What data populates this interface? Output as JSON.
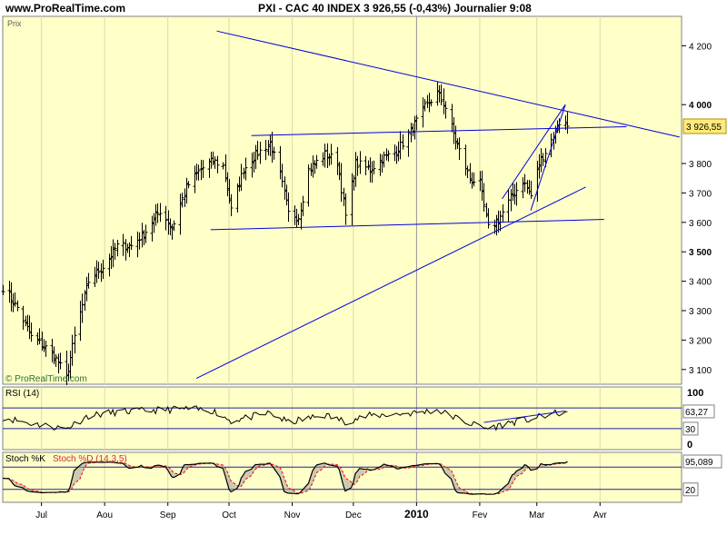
{
  "header": {
    "site": "www.ProRealTime.com",
    "title": "PXI - CAC 40 INDEX   3 926,55 (-0,43%)   Journalier  9:08"
  },
  "colors": {
    "panel_bg": "#ffffc8",
    "trendline": "#0000dd",
    "price_tag_bg": "#ffeb7a",
    "stoch_d": "#ff0000",
    "stoch_fill": "#a0a0a0"
  },
  "chart_data": [
    {
      "type": "candlestick",
      "panel": "price",
      "label": "Prix",
      "watermark": "© ProRealTime.com",
      "ylim": [
        3050,
        4300
      ],
      "yticks": [
        {
          "value": 3100,
          "label": "3 100",
          "bold": false
        },
        {
          "value": 3200,
          "label": "3 200",
          "bold": false
        },
        {
          "value": 3300,
          "label": "3 300",
          "bold": false
        },
        {
          "value": 3400,
          "label": "3 400",
          "bold": false
        },
        {
          "value": 3500,
          "label": "3 500",
          "bold": true
        },
        {
          "value": 3600,
          "label": "3 600",
          "bold": false
        },
        {
          "value": 3700,
          "label": "3 700",
          "bold": false
        },
        {
          "value": 3800,
          "label": "3 800",
          "bold": false
        },
        {
          "value": 4000,
          "label": "4 000",
          "bold": true
        },
        {
          "value": 4200,
          "label": "4 200",
          "bold": false
        }
      ],
      "last_price": {
        "value": 3926.55,
        "label": "3 926,55"
      },
      "xlim": [
        "2009-06-12",
        "2010-05-11"
      ],
      "xticks": [
        {
          "date": "2009-07-01",
          "label": "Jul"
        },
        {
          "date": "2009-08-01",
          "label": "Aou"
        },
        {
          "date": "2009-09-01",
          "label": "Sep"
        },
        {
          "date": "2009-10-01",
          "label": "Oct"
        },
        {
          "date": "2009-11-01",
          "label": "Nov"
        },
        {
          "date": "2009-12-01",
          "label": "Dec"
        },
        {
          "date": "2010-01-01",
          "label": "2010",
          "bold": true
        },
        {
          "date": "2010-02-01",
          "label": "Fev"
        },
        {
          "date": "2010-03-01",
          "label": "Mar"
        },
        {
          "date": "2010-04-01",
          "label": "Avr"
        }
      ],
      "series_start": "2009-06-12",
      "series_end": "2010-03-16",
      "close_anchors": [
        [
          "2009-06-12",
          3380
        ],
        [
          "2009-06-19",
          3310
        ],
        [
          "2009-06-26",
          3210
        ],
        [
          "2009-07-02",
          3180
        ],
        [
          "2009-07-07",
          3150
        ],
        [
          "2009-07-13",
          3070
        ],
        [
          "2009-07-17",
          3210
        ],
        [
          "2009-07-24",
          3400
        ],
        [
          "2009-07-31",
          3450
        ],
        [
          "2009-08-07",
          3520
        ],
        [
          "2009-08-14",
          3520
        ],
        [
          "2009-08-21",
          3570
        ],
        [
          "2009-08-28",
          3640
        ],
        [
          "2009-09-03",
          3580
        ],
        [
          "2009-09-10",
          3720
        ],
        [
          "2009-09-17",
          3780
        ],
        [
          "2009-09-23",
          3810
        ],
        [
          "2009-09-28",
          3790
        ],
        [
          "2009-10-02",
          3640
        ],
        [
          "2009-10-08",
          3780
        ],
        [
          "2009-10-14",
          3830
        ],
        [
          "2009-10-21",
          3870
        ],
        [
          "2009-10-26",
          3760
        ],
        [
          "2009-10-30",
          3630
        ],
        [
          "2009-11-04",
          3620
        ],
        [
          "2009-11-09",
          3780
        ],
        [
          "2009-11-17",
          3830
        ],
        [
          "2009-11-23",
          3810
        ],
        [
          "2009-11-27",
          3620
        ],
        [
          "2009-12-02",
          3800
        ],
        [
          "2009-12-09",
          3780
        ],
        [
          "2009-12-16",
          3820
        ],
        [
          "2009-12-22",
          3840
        ],
        [
          "2009-12-30",
          3920
        ],
        [
          "2010-01-05",
          3990
        ],
        [
          "2010-01-11",
          4040
        ],
        [
          "2010-01-15",
          3990
        ],
        [
          "2010-01-20",
          3880
        ],
        [
          "2010-01-27",
          3750
        ],
        [
          "2010-02-01",
          3730
        ],
        [
          "2010-02-05",
          3580
        ],
        [
          "2010-02-10",
          3610
        ],
        [
          "2010-02-16",
          3680
        ],
        [
          "2010-02-22",
          3740
        ],
        [
          "2010-02-26",
          3690
        ],
        [
          "2010-03-02",
          3800
        ],
        [
          "2010-03-08",
          3880
        ],
        [
          "2010-03-12",
          3940
        ],
        [
          "2010-03-16",
          3926.55
        ]
      ],
      "trendlines": [
        {
          "from": [
            "2009-09-25",
            4250
          ],
          "to": [
            "2010-05-10",
            3890
          ]
        },
        {
          "from": [
            "2009-10-12",
            3895
          ],
          "to": [
            "2010-04-14",
            3925
          ]
        },
        {
          "from": [
            "2009-09-22",
            3575
          ],
          "to": [
            "2010-04-03",
            3610
          ]
        },
        {
          "from": [
            "2009-09-15",
            3070
          ],
          "to": [
            "2010-03-25",
            3720
          ]
        },
        {
          "from": [
            "2010-02-12",
            3680
          ],
          "to": [
            "2010-03-15",
            4000
          ]
        },
        {
          "from": [
            "2010-02-26",
            3640
          ],
          "to": [
            "2010-03-15",
            4000
          ]
        }
      ]
    },
    {
      "type": "line",
      "panel": "rsi",
      "label": "RSI (14)",
      "ylim": [
        0,
        100
      ],
      "yticks": [
        {
          "value": 100,
          "label": "100",
          "bold": true
        },
        {
          "value": 0,
          "label": "0",
          "bold": true
        }
      ],
      "levels": [
        70,
        30
      ],
      "level_labels": [
        {
          "value": 30,
          "label": "30"
        }
      ],
      "last_value": {
        "value": 63.27,
        "label": "63,27"
      },
      "values_anchor": [
        [
          "2009-06-12",
          52
        ],
        [
          "2009-06-26",
          40
        ],
        [
          "2009-07-13",
          30
        ],
        [
          "2009-07-24",
          55
        ],
        [
          "2009-08-07",
          62
        ],
        [
          "2009-08-28",
          66
        ],
        [
          "2009-09-10",
          68
        ],
        [
          "2009-09-23",
          65
        ],
        [
          "2009-10-02",
          45
        ],
        [
          "2009-10-21",
          60
        ],
        [
          "2009-10-30",
          42
        ],
        [
          "2009-11-17",
          56
        ],
        [
          "2009-11-27",
          44
        ],
        [
          "2009-12-09",
          55
        ],
        [
          "2009-12-30",
          60
        ],
        [
          "2010-01-11",
          66
        ],
        [
          "2010-01-27",
          40
        ],
        [
          "2010-02-05",
          30
        ],
        [
          "2010-02-16",
          42
        ],
        [
          "2010-02-26",
          48
        ],
        [
          "2010-03-08",
          58
        ],
        [
          "2010-03-16",
          63.27
        ]
      ],
      "trendlines": [
        {
          "from": [
            "2010-02-03",
            42
          ],
          "to": [
            "2010-03-15",
            64
          ]
        }
      ]
    },
    {
      "type": "line",
      "panel": "stochastic",
      "label_k": "Stoch %K",
      "label_d": "Stoch %D (14,3,5)",
      "ylim": [
        0,
        100
      ],
      "levels": [
        80,
        20
      ],
      "level_labels": [
        {
          "value": 20,
          "label": "20"
        }
      ],
      "last_value": {
        "value": 95.089,
        "label": "95,089"
      }
    }
  ]
}
